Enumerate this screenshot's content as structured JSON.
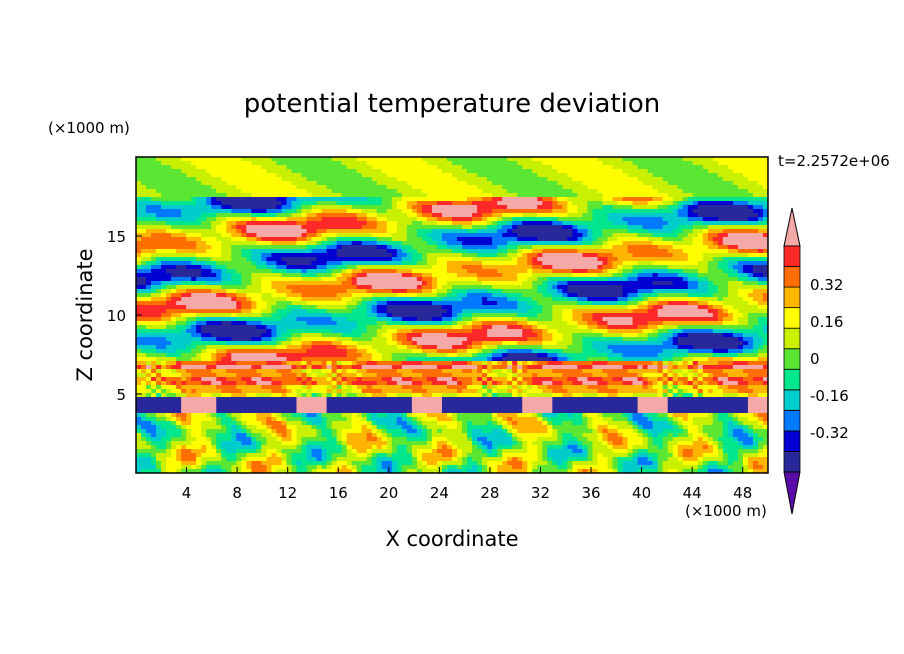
{
  "chart_data": {
    "type": "heatmap",
    "title": "potential temperature deviation",
    "xlabel": "X coordinate",
    "ylabel": "Z coordinate",
    "x_unit": "(×1000 m)",
    "y_unit": "(×1000 m)",
    "time_label": "t=2.2572e+06",
    "xlim": [
      0,
      50
    ],
    "ylim": [
      0,
      20
    ],
    "x_ticks": [
      4,
      8,
      12,
      16,
      20,
      24,
      28,
      32,
      36,
      40,
      44,
      48
    ],
    "y_ticks": [
      5,
      10,
      15
    ],
    "colorbar": {
      "levels": [
        -0.4,
        -0.32,
        -0.24,
        -0.16,
        -0.08,
        0,
        0.08,
        0.16,
        0.24,
        0.32,
        0.4
      ],
      "colors": [
        "#5a0aa6",
        "#28289a",
        "#0000d2",
        "#0078ff",
        "#00cccc",
        "#00e68c",
        "#5ae632",
        "#c8f000",
        "#ffff00",
        "#ffb400",
        "#ff6e00",
        "#ff2828",
        "#f5a8a8"
      ],
      "tick_labels": [
        "0.32",
        "0.16",
        "0",
        "-0.16",
        "-0.32"
      ],
      "tick_values": [
        0.32,
        0.16,
        0,
        -0.16,
        -0.32
      ],
      "extend": "both"
    },
    "grid": false
  }
}
